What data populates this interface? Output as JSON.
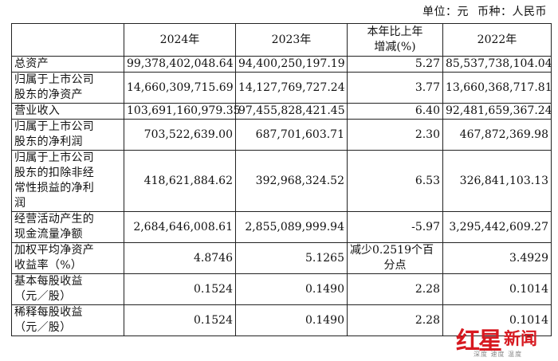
{
  "header": {
    "unit_label": "单位：元",
    "currency_label": "币种：人民币"
  },
  "table": {
    "columns": [
      "",
      "2024年",
      "2023年",
      "本年比上年增减(%)",
      "2022年"
    ],
    "col_3_line1": "本年比上年",
    "col_3_line2": "增减(%)",
    "rows": [
      {
        "label": [
          "总资产"
        ],
        "v2024": "99,378,402,048.64",
        "v2023": "94,400,250,197.19",
        "change": [
          "5.27"
        ],
        "v2022": "85,537,738,104.04"
      },
      {
        "label": [
          "归属于上市公司",
          "股东的净资产"
        ],
        "v2024": "14,660,309,715.69",
        "v2023": "14,127,769,727.24",
        "change": [
          "3.77"
        ],
        "v2022": "13,660,368,717.81"
      },
      {
        "label": [
          "营业收入"
        ],
        "v2024": "103,691,160,979.35",
        "v2023": "97,455,828,421.45",
        "change": [
          "6.40"
        ],
        "v2022": "92,481,659,367.24"
      },
      {
        "label": [
          "归属于上市公司",
          "股东的净利润"
        ],
        "v2024": "703,522,639.00",
        "v2023": "687,701,603.71",
        "change": [
          "2.30"
        ],
        "v2022": "467,872,369.98"
      },
      {
        "label": [
          "归属于上市公司",
          "股东的扣除非经",
          "常性损益的净利",
          "润"
        ],
        "v2024": "418,621,884.62",
        "v2023": "392,968,324.52",
        "change": [
          "6.53"
        ],
        "v2022": "326,841,103.13"
      },
      {
        "label": [
          "经营活动产生的",
          "现金流量净额"
        ],
        "v2024": "2,684,646,008.61",
        "v2023": "2,855,089,999.94",
        "change": [
          "-5.97"
        ],
        "v2022": "3,295,442,609.27"
      },
      {
        "label": [
          "加权平均净资产",
          "收益率（%）"
        ],
        "v2024": "4.8746",
        "v2023": "5.1265",
        "change": [
          "减少0.2519个百",
          "分点"
        ],
        "v2022": "3.4929"
      },
      {
        "label": [
          "基本每股收益",
          "（元／股）"
        ],
        "v2024": "0.1524",
        "v2023": "0.1490",
        "change": [
          "2.28"
        ],
        "v2022": "0.1014"
      },
      {
        "label": [
          "稀释每股收益",
          "（元／股）"
        ],
        "v2024": "0.1524",
        "v2023": "0.1490",
        "change": [
          "2.28"
        ],
        "v2022": "0.1014"
      }
    ]
  },
  "watermark": {
    "brand_red": "红星",
    "brand_news": "新闻",
    "tagline": "深度 速度 温度",
    "color": "#d71920"
  }
}
